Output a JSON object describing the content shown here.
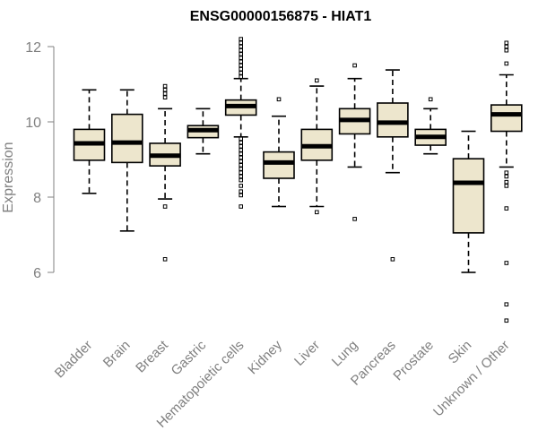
{
  "chart_data": {
    "type": "boxplot",
    "title": "ENSG00000156875 - HIAT1",
    "xlabel": "",
    "ylabel": "Expression",
    "ylim": [
      4.6,
      12.3
    ],
    "yticks": [
      6,
      8,
      10,
      12
    ],
    "grid": false,
    "box_fill": "#EDE6CD",
    "categories": [
      "Bladder",
      "Brain",
      "Breast",
      "Gastric",
      "Hematopoietic cells",
      "Kidney",
      "Liver",
      "Lung",
      "Pancreas",
      "Prostate",
      "Skin",
      "Unknown / Other"
    ],
    "boxes": [
      {
        "name": "Bladder",
        "whisker_low": 8.1,
        "q1": 8.98,
        "median": 9.43,
        "q3": 9.8,
        "whisker_high": 10.85,
        "outliers": []
      },
      {
        "name": "Brain",
        "whisker_low": 7.1,
        "q1": 8.92,
        "median": 9.45,
        "q3": 10.2,
        "whisker_high": 10.85,
        "outliers": []
      },
      {
        "name": "Breast",
        "whisker_low": 7.95,
        "q1": 8.83,
        "median": 9.1,
        "q3": 9.43,
        "whisker_high": 10.35,
        "outliers": [
          6.35,
          7.75,
          10.65,
          10.75,
          10.85,
          10.95
        ]
      },
      {
        "name": "Gastric",
        "whisker_low": 9.15,
        "q1": 9.58,
        "median": 9.78,
        "q3": 9.9,
        "whisker_high": 10.35,
        "outliers": []
      },
      {
        "name": "Hematopoietic cells",
        "whisker_low": 9.6,
        "q1": 10.18,
        "median": 10.42,
        "q3": 10.58,
        "whisker_high": 11.15,
        "outliers": [
          7.75,
          8.05,
          8.15,
          8.3,
          8.45,
          8.55,
          8.65,
          8.75,
          8.85,
          8.95,
          9.05,
          9.15,
          9.25,
          9.35,
          9.45,
          9.55,
          11.2,
          11.3,
          11.4,
          11.5,
          11.6,
          11.7,
          11.8,
          11.9,
          12.0,
          12.1,
          12.2
        ]
      },
      {
        "name": "Kidney",
        "whisker_low": 7.75,
        "q1": 8.5,
        "median": 8.92,
        "q3": 9.2,
        "whisker_high": 10.15,
        "outliers": [
          10.6
        ]
      },
      {
        "name": "Liver",
        "whisker_low": 7.75,
        "q1": 8.98,
        "median": 9.35,
        "q3": 9.8,
        "whisker_high": 10.95,
        "outliers": [
          7.6,
          11.1
        ]
      },
      {
        "name": "Lung",
        "whisker_low": 8.8,
        "q1": 9.68,
        "median": 10.05,
        "q3": 10.35,
        "whisker_high": 11.15,
        "outliers": [
          7.42,
          11.5
        ]
      },
      {
        "name": "Pancreas",
        "whisker_low": 8.65,
        "q1": 9.6,
        "median": 9.98,
        "q3": 10.5,
        "whisker_high": 11.38,
        "outliers": [
          6.35
        ]
      },
      {
        "name": "Prostate",
        "whisker_low": 9.15,
        "q1": 9.38,
        "median": 9.6,
        "q3": 9.8,
        "whisker_high": 10.35,
        "outliers": [
          10.6
        ]
      },
      {
        "name": "Skin",
        "whisker_low": 6.0,
        "q1": 7.05,
        "median": 8.38,
        "q3": 9.02,
        "whisker_high": 9.75,
        "outliers": []
      },
      {
        "name": "Unknown / Other",
        "whisker_low": 8.8,
        "q1": 9.75,
        "median": 10.2,
        "q3": 10.45,
        "whisker_high": 11.25,
        "outliers": [
          4.72,
          5.15,
          6.25,
          7.7,
          8.3,
          8.4,
          8.55,
          8.65,
          11.55,
          11.9,
          12.0,
          12.1
        ]
      }
    ]
  }
}
